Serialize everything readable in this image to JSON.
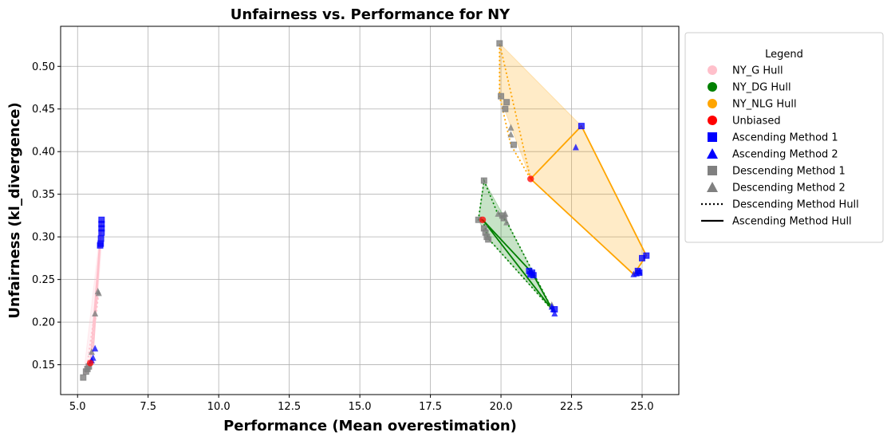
{
  "chart_data": {
    "type": "scatter",
    "title": "Unfairness vs. Performance for NY",
    "xlabel": "Performance (Mean overestimation)",
    "ylabel": "Unfairness (kl_divergence)",
    "xlim": [
      4.4,
      26.3
    ],
    "ylim": [
      0.115,
      0.547
    ],
    "xticks": [
      5.0,
      7.5,
      10.0,
      12.5,
      15.0,
      17.5,
      20.0,
      22.5,
      25.0
    ],
    "xtick_labels": [
      "5.0",
      "7.5",
      "10.0",
      "12.5",
      "15.0",
      "17.5",
      "20.0",
      "22.5",
      "25.0"
    ],
    "yticks": [
      0.15,
      0.2,
      0.25,
      0.3,
      0.35,
      0.4,
      0.45,
      0.5
    ],
    "ytick_labels": [
      "0.15",
      "0.20",
      "0.25",
      "0.30",
      "0.35",
      "0.40",
      "0.45",
      "0.50"
    ],
    "grid": true,
    "legend": {
      "title": "Legend",
      "placement": "outside-right",
      "entries": [
        {
          "label": "NY_G Hull",
          "marker": "circle",
          "color": "#ffc0cb"
        },
        {
          "label": "NY_DG Hull",
          "marker": "circle",
          "color": "#008000"
        },
        {
          "label": "NY_NLG Hull",
          "marker": "circle",
          "color": "#ffa500"
        },
        {
          "label": "Unbiased",
          "marker": "circle",
          "color": "#ff0000"
        },
        {
          "label": "Ascending Method 1",
          "marker": "square",
          "color": "#0000ff"
        },
        {
          "label": "Ascending Method 2",
          "marker": "triangle",
          "color": "#0000ff"
        },
        {
          "label": "Descending Method 1",
          "marker": "square",
          "color": "#808080"
        },
        {
          "label": "Descending Method 2",
          "marker": "triangle",
          "color": "#808080"
        },
        {
          "label": "Descending Method Hull",
          "marker": "dotted-line",
          "color": "#000000"
        },
        {
          "label": "Ascending Method Hull",
          "marker": "solid-line",
          "color": "#000000"
        }
      ]
    },
    "groups": [
      {
        "name": "NY_G",
        "color": "#ffc0cb",
        "unbiased": [
          5.45,
          0.152
        ],
        "ascending_hull": [
          [
            5.45,
            0.152
          ],
          [
            5.85,
            0.32
          ],
          [
            5.8,
            0.29
          ],
          [
            5.55,
            0.165
          ]
        ],
        "descending_hull": [
          [
            5.45,
            0.152
          ],
          [
            5.75,
            0.235
          ],
          [
            5.6,
            0.21
          ],
          [
            5.3,
            0.14
          ]
        ],
        "fill": [
          [
            5.2,
            0.135
          ],
          [
            5.85,
            0.32
          ],
          [
            5.85,
            0.29
          ],
          [
            5.55,
            0.16
          ]
        ],
        "asc_m1": [
          [
            5.85,
            0.32
          ],
          [
            5.85,
            0.315
          ],
          [
            5.85,
            0.31
          ],
          [
            5.85,
            0.305
          ],
          [
            5.83,
            0.298
          ],
          [
            5.82,
            0.292
          ],
          [
            5.8,
            0.29
          ]
        ],
        "asc_m2": [
          [
            5.62,
            0.169
          ],
          [
            5.55,
            0.158
          ],
          [
            5.5,
            0.155
          ]
        ],
        "desc_m1": [
          [
            5.2,
            0.135
          ],
          [
            5.3,
            0.142
          ],
          [
            5.35,
            0.145
          ],
          [
            5.4,
            0.148
          ]
        ],
        "desc_m2": [
          [
            5.72,
            0.236
          ],
          [
            5.75,
            0.234
          ],
          [
            5.62,
            0.21
          ],
          [
            5.5,
            0.165
          ]
        ]
      },
      {
        "name": "NY_DG",
        "color": "#008000",
        "unbiased": [
          19.35,
          0.32
        ],
        "ascending_hull": [
          [
            19.35,
            0.32
          ],
          [
            21.85,
            0.213
          ],
          [
            21.1,
            0.258
          ],
          [
            19.35,
            0.32
          ]
        ],
        "descending_hull": [
          [
            19.35,
            0.32
          ],
          [
            19.2,
            0.32
          ],
          [
            19.4,
            0.366
          ],
          [
            19.85,
            0.33
          ],
          [
            20.2,
            0.318
          ],
          [
            21.85,
            0.213
          ],
          [
            19.55,
            0.298
          ],
          [
            19.35,
            0.32
          ]
        ],
        "fill": [
          [
            19.2,
            0.32
          ],
          [
            19.4,
            0.366
          ],
          [
            20.2,
            0.318
          ],
          [
            21.85,
            0.213
          ],
          [
            19.55,
            0.298
          ]
        ],
        "asc_m1": [
          [
            21.0,
            0.26
          ],
          [
            21.1,
            0.258
          ],
          [
            21.15,
            0.255
          ],
          [
            21.05,
            0.256
          ],
          [
            21.9,
            0.215
          ]
        ],
        "asc_m2": [
          [
            21.85,
            0.215
          ],
          [
            21.9,
            0.21
          ],
          [
            21.8,
            0.218
          ]
        ],
        "desc_m1": [
          [
            19.2,
            0.32
          ],
          [
            19.4,
            0.366
          ],
          [
            19.4,
            0.31
          ],
          [
            19.45,
            0.305
          ],
          [
            19.5,
            0.3
          ],
          [
            19.55,
            0.297
          ],
          [
            20.05,
            0.325
          ],
          [
            20.1,
            0.322
          ]
        ],
        "desc_m2": [
          [
            19.9,
            0.327
          ],
          [
            20.15,
            0.327
          ],
          [
            20.2,
            0.317
          ],
          [
            21.8,
            0.22
          ]
        ]
      },
      {
        "name": "NY_NLG",
        "color": "#ffa500",
        "unbiased": [
          21.05,
          0.368
        ],
        "ascending_hull": [
          [
            21.05,
            0.368
          ],
          [
            22.85,
            0.43
          ],
          [
            25.15,
            0.278
          ],
          [
            24.7,
            0.256
          ],
          [
            21.05,
            0.368
          ]
        ],
        "descending_hull": [
          [
            21.05,
            0.368
          ],
          [
            19.95,
            0.527
          ],
          [
            19.95,
            0.465
          ],
          [
            20.35,
            0.408
          ],
          [
            21.05,
            0.368
          ]
        ],
        "fill": [
          [
            19.95,
            0.527
          ],
          [
            22.85,
            0.43
          ],
          [
            25.15,
            0.278
          ],
          [
            24.7,
            0.256
          ],
          [
            21.05,
            0.368
          ],
          [
            19.95,
            0.465
          ]
        ],
        "asc_m1": [
          [
            22.85,
            0.43
          ],
          [
            25.15,
            0.278
          ],
          [
            25.0,
            0.275
          ],
          [
            24.9,
            0.258
          ],
          [
            24.85,
            0.26
          ]
        ],
        "asc_m2": [
          [
            22.65,
            0.405
          ],
          [
            24.7,
            0.256
          ],
          [
            24.8,
            0.257
          ],
          [
            24.9,
            0.259
          ]
        ],
        "desc_m1": [
          [
            19.95,
            0.527
          ],
          [
            20.0,
            0.465
          ],
          [
            20.2,
            0.458
          ],
          [
            20.15,
            0.45
          ],
          [
            20.45,
            0.408
          ]
        ],
        "desc_m2": [
          [
            20.35,
            0.428
          ],
          [
            20.35,
            0.42
          ]
        ]
      }
    ]
  }
}
